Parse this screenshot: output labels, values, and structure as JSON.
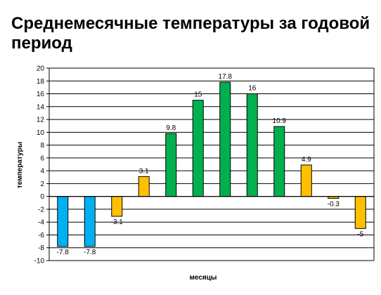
{
  "slide": {
    "title": "Среднемесячные температуры за годовой период"
  },
  "chart_data": {
    "type": "bar",
    "title": "",
    "xlabel": "месяцы",
    "ylabel": "температуры",
    "ylim": [
      -10,
      20
    ],
    "ytick_step": 2,
    "grid": true,
    "legend": "none",
    "categories": [
      "",
      "",
      "",
      "",
      "",
      "",
      "",
      "",
      "",
      "",
      "",
      ""
    ],
    "values": [
      -7.8,
      -7.8,
      -3.1,
      3.1,
      9.8,
      15,
      17.8,
      16,
      10.9,
      4.9,
      -0.3,
      -5
    ],
    "data_labels": [
      "-7.8",
      "-7.8",
      "-3.1",
      "3.1",
      "9.8",
      "15",
      "17.8",
      "16",
      "10.9",
      "4.9",
      "-0.3",
      "-5"
    ],
    "bar_colors": [
      "#00B0F0",
      "#00B0F0",
      "#FFC000",
      "#FFC000",
      "#00B050",
      "#00B050",
      "#00B050",
      "#00B050",
      "#00B050",
      "#FFC000",
      "#FFC000",
      "#FFC000"
    ]
  }
}
